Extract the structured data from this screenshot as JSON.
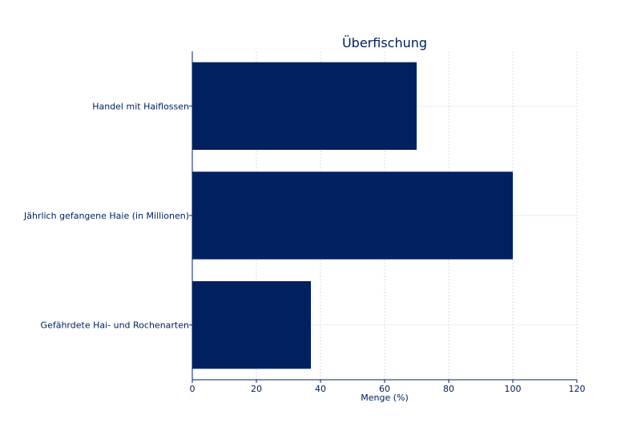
{
  "chart_data": {
    "type": "bar",
    "orientation": "horizontal",
    "title": "Überfischung",
    "xlabel": "Menge (%)",
    "ylabel": "",
    "categories": [
      "Handel mit Haiflossen",
      "Jährlich gefangene Haie (in Millionen)",
      "Gefährdete Hai- und Rochenarten"
    ],
    "values": [
      70,
      100,
      37
    ],
    "xlim": [
      0,
      120
    ],
    "xticks": [
      0,
      20,
      40,
      60,
      80,
      100,
      120
    ],
    "grid": true,
    "bar_color": "#002060",
    "text_color": "#002060"
  }
}
